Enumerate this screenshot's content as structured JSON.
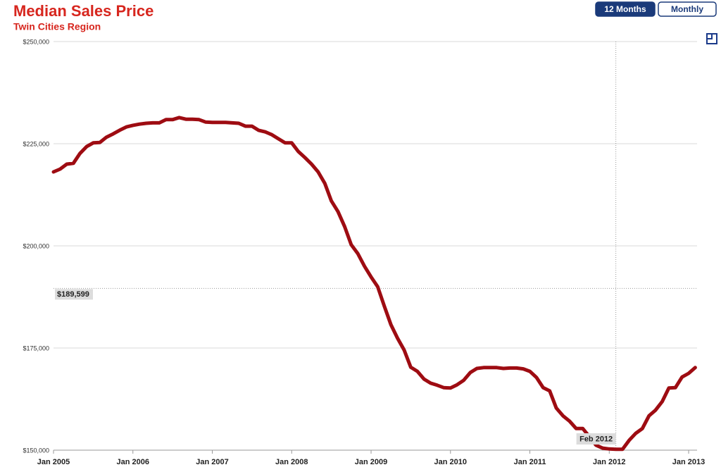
{
  "chart_data": {
    "type": "line",
    "title": "Median Sales Price",
    "subtitle": "Twin Cities Region",
    "buttons": [
      "12 Months",
      "Monthly"
    ],
    "active_button": 0,
    "color": "#9e0c12",
    "grid": true,
    "x": [
      2005,
      2005.083,
      2005.167,
      2005.25,
      2005.333,
      2005.417,
      2005.5,
      2005.583,
      2005.667,
      2005.75,
      2005.833,
      2005.917,
      2006,
      2006.083,
      2006.167,
      2006.25,
      2006.333,
      2006.417,
      2006.5,
      2006.583,
      2006.667,
      2006.75,
      2006.833,
      2006.917,
      2007,
      2007.083,
      2007.167,
      2007.25,
      2007.333,
      2007.417,
      2007.5,
      2007.583,
      2007.667,
      2007.75,
      2007.833,
      2007.917,
      2008,
      2008.083,
      2008.167,
      2008.25,
      2008.333,
      2008.417,
      2008.5,
      2008.583,
      2008.667,
      2008.75,
      2008.833,
      2008.917,
      2009,
      2009.083,
      2009.167,
      2009.25,
      2009.333,
      2009.417,
      2009.5,
      2009.583,
      2009.667,
      2009.75,
      2009.833,
      2009.917,
      2010,
      2010.083,
      2010.167,
      2010.25,
      2010.333,
      2010.417,
      2010.5,
      2010.583,
      2010.667,
      2010.75,
      2010.833,
      2010.917,
      2011,
      2011.083,
      2011.167,
      2011.25,
      2011.333,
      2011.417,
      2011.5,
      2011.583,
      2011.667,
      2011.75,
      2011.833,
      2011.917,
      2012,
      2012.083,
      2012.167,
      2012.25,
      2012.333,
      2012.417,
      2012.5,
      2012.583,
      2012.667,
      2012.75,
      2012.833,
      2012.917,
      2013,
      2013.083
    ],
    "values": [
      218100,
      218800,
      220000,
      220200,
      222600,
      224300,
      225200,
      225300,
      226600,
      227400,
      228300,
      229100,
      229500,
      229800,
      230000,
      230100,
      230100,
      230900,
      230900,
      231400,
      231000,
      231000,
      230900,
      230300,
      230200,
      230200,
      230200,
      230100,
      230000,
      229300,
      229300,
      228300,
      227900,
      227200,
      226200,
      225200,
      225200,
      223100,
      221600,
      220000,
      218100,
      215300,
      211000,
      208400,
      204700,
      200300,
      198100,
      195000,
      192400,
      190000,
      185200,
      180700,
      177400,
      174500,
      170300,
      169300,
      167400,
      166400,
      165900,
      165300,
      165200,
      166000,
      167100,
      169000,
      170000,
      170200,
      170200,
      170200,
      170000,
      170100,
      170100,
      169900,
      169300,
      167800,
      165300,
      164500,
      160300,
      158400,
      157100,
      155300,
      155300,
      153300,
      151200,
      150500,
      150300,
      150200,
      150200,
      152400,
      154100,
      155300,
      158400,
      159800,
      161900,
      165200,
      165300,
      167900,
      168800,
      170200
    ],
    "xlim": [
      2005,
      2013.106
    ],
    "xticks": [
      {
        "value": 2005,
        "label": "Jan 2005"
      },
      {
        "value": 2006,
        "label": "Jan 2006"
      },
      {
        "value": 2007,
        "label": "Jan 2007"
      },
      {
        "value": 2008,
        "label": "Jan 2008"
      },
      {
        "value": 2009,
        "label": "Jan 2009"
      },
      {
        "value": 2010,
        "label": "Jan 2010"
      },
      {
        "value": 2011,
        "label": "Jan 2011"
      },
      {
        "value": 2012,
        "label": "Jan 2012"
      },
      {
        "value": 2013,
        "label": "Jan 2013"
      }
    ],
    "ylim": [
      150000,
      250000
    ],
    "yticks": [
      {
        "value": 150000,
        "label": "$150,000"
      },
      {
        "value": 175000,
        "label": "$175,000"
      },
      {
        "value": 200000,
        "label": "$200,000"
      },
      {
        "value": 225000,
        "label": "$225,000"
      },
      {
        "value": 250000,
        "label": "$250,000"
      }
    ],
    "crosshair": {
      "x": 2012.083,
      "x_label": "Feb 2012",
      "y": 189599,
      "y_label": "$189,599"
    }
  }
}
